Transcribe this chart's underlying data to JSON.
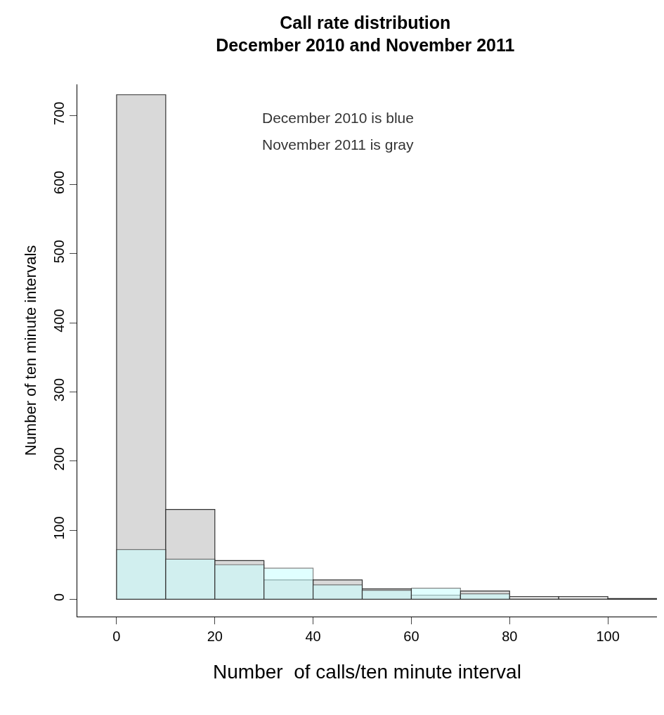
{
  "chart_data": {
    "type": "histogram",
    "title": "Call rate distribution\nDecember 2010 and November 2011",
    "xlabel": "Number  of calls/ten minute interval",
    "ylabel": "Number of ten minute intervals",
    "annotations": [
      "December 2010 is blue",
      "November 2011 is gray"
    ],
    "bins": [
      0,
      10,
      20,
      30,
      40,
      50,
      60,
      70,
      80,
      90,
      100,
      110
    ],
    "series": [
      {
        "color": "#d9d9d9",
        "values": [
          730,
          130,
          56,
          28,
          28,
          15,
          6,
          12,
          4,
          4,
          1
        ]
      },
      {
        "color": "#ccffff",
        "values": [
          72,
          58,
          50,
          45,
          21,
          13,
          16,
          8,
          null,
          null,
          null
        ]
      }
    ],
    "xlim": [
      -8,
      110
    ],
    "xticks": [
      0,
      20,
      40,
      60,
      80,
      100
    ],
    "ylim": [
      -25,
      745
    ],
    "yticks": [
      0,
      100,
      200,
      300,
      400,
      500,
      600,
      700
    ],
    "legend": false
  }
}
